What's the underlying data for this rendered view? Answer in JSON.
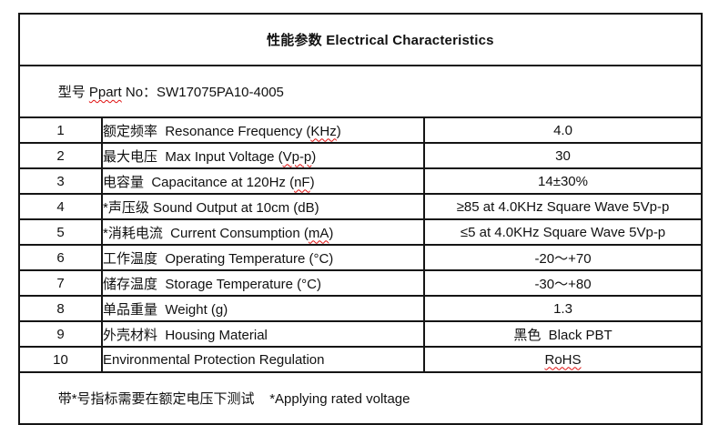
{
  "title": "性能参数 Electrical Characteristics",
  "part_row": {
    "pre": "型号 ",
    "word": "Ppart",
    "post": " No：SW17075PA10-4005"
  },
  "rows": [
    {
      "no": "1",
      "label": [
        {
          "text": "额定频率  Resonance Frequency ("
        },
        {
          "text": "KHz",
          "misspelled": true
        },
        {
          "text": ")"
        }
      ],
      "value": [
        {
          "text": "4.0"
        }
      ]
    },
    {
      "no": "2",
      "label": [
        {
          "text": "最大电压  Max Input Voltage ("
        },
        {
          "text": "Vp-p",
          "misspelled": true
        },
        {
          "text": ")"
        }
      ],
      "value": [
        {
          "text": "30"
        }
      ]
    },
    {
      "no": "3",
      "label": [
        {
          "text": "电容量  Capacitance at 120Hz ("
        },
        {
          "text": "nF",
          "misspelled": true
        },
        {
          "text": ")"
        }
      ],
      "value": [
        {
          "text": "14±30%"
        }
      ]
    },
    {
      "no": "4",
      "label": [
        {
          "text": "*声压级 Sound Output at 10cm (dB)"
        }
      ],
      "value": [
        {
          "text": "≥85 at 4.0KHz Square Wave 5Vp-p"
        }
      ]
    },
    {
      "no": "5",
      "label": [
        {
          "text": "*消耗电流  Current Consumption ("
        },
        {
          "text": "mA",
          "misspelled": true
        },
        {
          "text": ")"
        }
      ],
      "value": [
        {
          "text": "≤5 at 4.0KHz Square Wave 5Vp-p"
        }
      ]
    },
    {
      "no": "6",
      "label": [
        {
          "text": "工作温度  Operating Temperature (°C)"
        }
      ],
      "value": [
        {
          "text": "-20～+70"
        }
      ]
    },
    {
      "no": "7",
      "label": [
        {
          "text": "储存温度  Storage Temperature (°C)"
        }
      ],
      "value": [
        {
          "text": "-30～+80"
        }
      ]
    },
    {
      "no": "8",
      "label": [
        {
          "text": "单品重量  Weight (g)"
        }
      ],
      "value": [
        {
          "text": "1.3"
        }
      ]
    },
    {
      "no": "9",
      "label": [
        {
          "text": "外壳材料  Housing Material"
        }
      ],
      "value": [
        {
          "text": "黑色  Black PBT"
        }
      ]
    },
    {
      "no": "10",
      "label": [
        {
          "text": "Environmental Protection Regulation"
        }
      ],
      "value": [
        {
          "text": "RoHS",
          "misspelled": true
        }
      ]
    }
  ],
  "footer": {
    "text": "带*号指标需要在额定电压下测试    *Applying rated voltage"
  },
  "colors": {
    "spellcheck_red": "#e01010",
    "border": "#151515",
    "text": "#111111",
    "background": "#ffffff"
  }
}
